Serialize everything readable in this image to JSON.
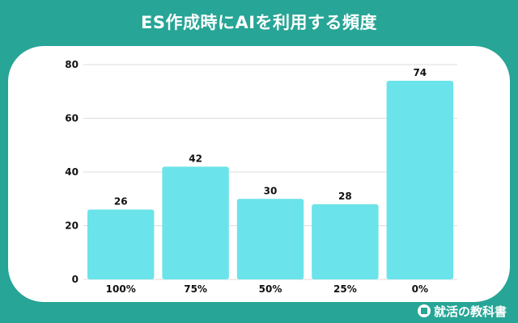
{
  "header": {
    "title": "ES作成時にAIを利用する頻度"
  },
  "brand": {
    "name": "就活の教科書",
    "icon": "book-logo-icon"
  },
  "colors": {
    "background": "#27a596",
    "bar": "#6be3ea",
    "grid": "#dddddd",
    "text": "#111111"
  },
  "chart_data": {
    "type": "bar",
    "title": "ES作成時にAIを利用する頻度",
    "xlabel": "",
    "ylabel": "",
    "categories": [
      "100%",
      "75%",
      "50%",
      "25%",
      "0%"
    ],
    "values": [
      26,
      42,
      30,
      28,
      74
    ],
    "ylim": [
      0,
      80
    ],
    "yticks": [
      "0",
      "20",
      "40",
      "60",
      "80"
    ],
    "grid": true,
    "legend": "none"
  }
}
